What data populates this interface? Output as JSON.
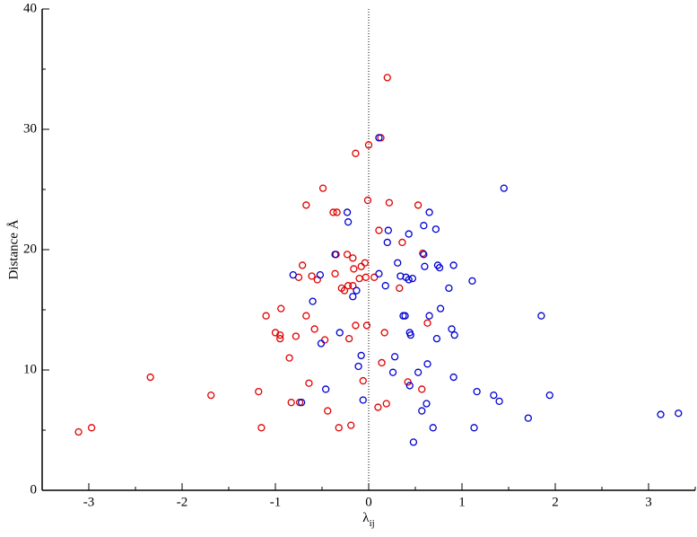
{
  "chart_data": {
    "type": "scatter",
    "x_label": "λ",
    "x_label_subscript": "ij",
    "y_label": "Distance  Å",
    "xlim": [
      -3.5,
      3.5
    ],
    "ylim": [
      0,
      40
    ],
    "xticks": [
      -3,
      -2,
      -1,
      0,
      1,
      2,
      3
    ],
    "yticks": [
      0,
      10,
      20,
      30,
      40
    ],
    "xminorticks": [
      -3.5,
      -2.5,
      -1.5,
      -0.5,
      0.5,
      1.5,
      2.5,
      3.5
    ],
    "yminorticks": [
      5,
      15,
      25,
      35
    ],
    "zero_line": true,
    "series": [
      {
        "color": "#e00000",
        "x": [
          -3.11,
          -2.97,
          -2.34,
          -1.69,
          -1.18,
          -1.15,
          -1.1,
          -1.0,
          -0.95,
          -0.95,
          -0.94,
          -0.85,
          -0.83,
          -0.74,
          -0.78,
          -0.75,
          -0.71,
          -0.67,
          -0.67,
          -0.64,
          -0.61,
          -0.58,
          -0.55,
          -0.49,
          -0.47,
          -0.44,
          -0.38,
          -0.34,
          -0.36,
          -0.35,
          -0.32,
          -0.29,
          -0.26,
          -0.23,
          -0.22,
          -0.21,
          -0.19,
          -0.17,
          -0.17,
          -0.16,
          -0.14,
          -0.14,
          -0.1,
          -0.08,
          -0.06,
          -0.04,
          -0.03,
          -0.02,
          -0.01,
          0.0,
          0.06,
          0.1,
          0.13,
          0.11,
          0.14,
          0.17,
          0.2,
          0.19,
          0.22,
          0.33,
          0.36,
          0.42,
          0.53,
          0.57,
          0.58,
          0.63
        ],
        "values": [
          4.85,
          5.2,
          9.4,
          7.9,
          8.2,
          5.2,
          14.5,
          13.1,
          12.9,
          12.6,
          15.1,
          11.0,
          7.3,
          7.3,
          12.8,
          17.7,
          18.7,
          14.5,
          23.7,
          8.9,
          17.8,
          13.4,
          17.5,
          25.1,
          12.5,
          6.6,
          23.1,
          23.1,
          18.0,
          19.6,
          5.2,
          16.8,
          16.6,
          19.6,
          17.0,
          12.6,
          5.4,
          19.3,
          17.0,
          18.4,
          13.7,
          28.0,
          17.6,
          18.6,
          9.1,
          18.9,
          17.7,
          13.7,
          24.1,
          28.7,
          17.7,
          6.9,
          29.3,
          21.6,
          10.6,
          13.1,
          34.3,
          7.2,
          23.9,
          16.8,
          20.6,
          9.0,
          23.7,
          8.4,
          19.7,
          13.9
        ]
      },
      {
        "color": "#0000d0",
        "x": [
          -0.81,
          -0.6,
          -0.72,
          -0.51,
          -0.52,
          -0.46,
          -0.36,
          -0.31,
          -0.23,
          -0.22,
          -0.17,
          -0.13,
          -0.11,
          -0.08,
          -0.06,
          0.11,
          0.11,
          0.18,
          0.2,
          0.21,
          0.26,
          0.28,
          0.31,
          0.34,
          0.37,
          0.39,
          0.4,
          0.43,
          0.43,
          0.44,
          0.44,
          0.45,
          0.47,
          0.48,
          0.53,
          0.57,
          0.59,
          0.6,
          0.62,
          0.59,
          0.63,
          0.65,
          0.65,
          0.69,
          0.72,
          0.73,
          0.74,
          0.76,
          0.77,
          0.86,
          0.89,
          0.91,
          0.91,
          0.92,
          1.11,
          1.13,
          1.16,
          1.34,
          1.4,
          1.45,
          1.71,
          1.85,
          1.94,
          3.13,
          3.32
        ],
        "values": [
          17.9,
          15.7,
          7.3,
          12.2,
          17.9,
          8.4,
          19.6,
          13.1,
          23.1,
          22.3,
          16.1,
          16.6,
          10.3,
          11.2,
          7.5,
          29.3,
          18.0,
          17.0,
          20.6,
          21.6,
          9.8,
          11.1,
          18.9,
          17.8,
          14.5,
          14.5,
          17.7,
          21.3,
          17.5,
          8.7,
          13.1,
          12.9,
          17.6,
          4.0,
          9.8,
          6.6,
          19.6,
          18.6,
          7.2,
          22.0,
          10.5,
          23.1,
          14.5,
          5.2,
          21.7,
          12.6,
          18.7,
          18.5,
          15.1,
          16.8,
          13.4,
          18.7,
          9.4,
          12.9,
          17.4,
          5.2,
          8.2,
          7.9,
          7.4,
          25.1,
          6.0,
          14.5,
          7.9,
          6.3,
          6.4
        ]
      }
    ]
  }
}
